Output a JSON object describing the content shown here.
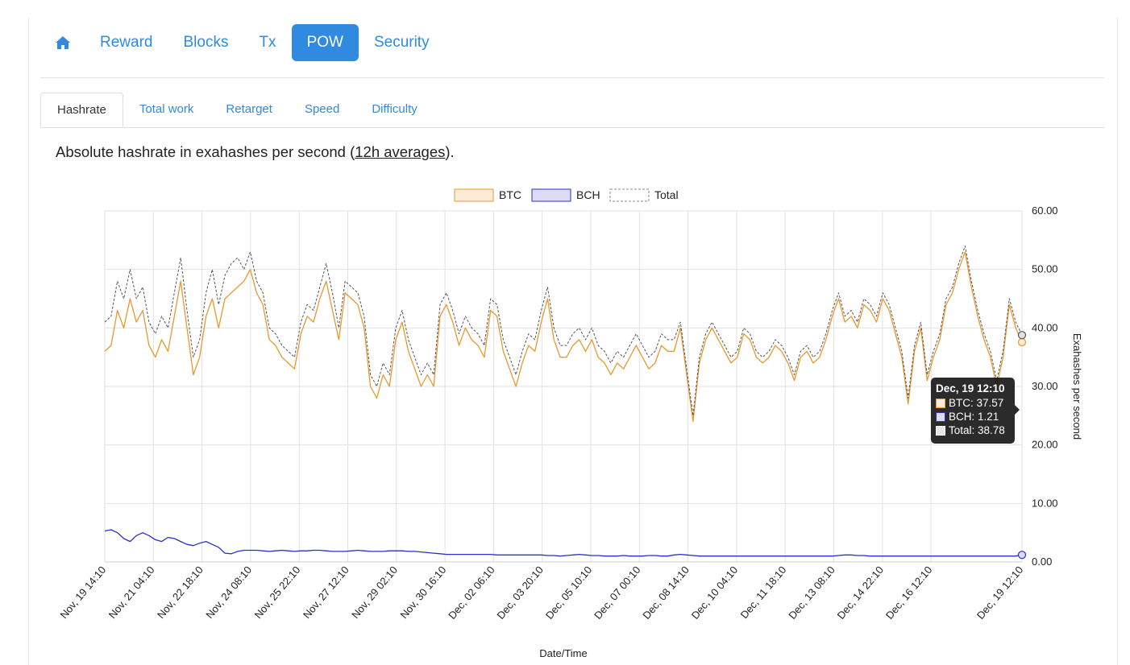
{
  "nav": {
    "home_icon": "home-icon",
    "items": [
      {
        "label": "Reward",
        "active": false
      },
      {
        "label": "Blocks",
        "active": false
      },
      {
        "label": "Tx",
        "active": false
      },
      {
        "label": "POW",
        "active": true
      },
      {
        "label": "Security",
        "active": false
      }
    ]
  },
  "subtabs": [
    {
      "label": "Hashrate",
      "active": true
    },
    {
      "label": "Total work",
      "active": false
    },
    {
      "label": "Retarget",
      "active": false
    },
    {
      "label": "Speed",
      "active": false
    },
    {
      "label": "Difficulty",
      "active": false
    }
  ],
  "description": {
    "before": "Absolute hashrate in exahashes per second (",
    "link": "12h averages",
    "after": ")."
  },
  "colors": {
    "accent": "#2f8ae0",
    "btc": "#e8982f",
    "btc_fill": "#fdebd8",
    "bch": "#2a2fc8",
    "bch_fill": "#dcdcf6",
    "total": "#555555"
  },
  "tooltip": {
    "title": "Dec, 19 12:10",
    "btc": "BTC: 37.57",
    "bch": "BCH: 1.21",
    "total": "Total: 38.78"
  },
  "chart_data": {
    "type": "line",
    "title": "",
    "xlabel": "Date/Time",
    "ylabel": "Exahashes per second",
    "ylim": [
      0,
      60
    ],
    "y_axis_side": "right",
    "yticks": [
      "0.00",
      "10.00",
      "20.00",
      "30.00",
      "40.00",
      "50.00",
      "60.00"
    ],
    "x_tick_labels": [
      "Nov, 19 14:10",
      "Nov, 21 04:10",
      "Nov, 22 18:10",
      "Nov, 24 08:10",
      "Nov, 25 22:10",
      "Nov, 27 12:10",
      "Nov, 29 02:10",
      "Nov, 30 16:10",
      "Dec, 02 06:10",
      "Dec, 03 20:10",
      "Dec, 05 10:10",
      "Dec, 07 00:10",
      "Dec, 08 14:10",
      "Dec, 10 04:10",
      "Dec, 11 18:10",
      "Dec, 13 08:10",
      "Dec, 14 22:10",
      "Dec, 16 12:10",
      "Dec, 19 12:10"
    ],
    "grid": true,
    "legend_position": "top-center",
    "series": [
      {
        "name": "BTC",
        "values": [
          36,
          37,
          43,
          40,
          45,
          41,
          43,
          37,
          35,
          38,
          36,
          42,
          48,
          40,
          32,
          35,
          42,
          45,
          40,
          45,
          46,
          47,
          48,
          50,
          46,
          44,
          38,
          37,
          35,
          34,
          33,
          39,
          42,
          41,
          45,
          48,
          43,
          38,
          46,
          45,
          44,
          40,
          30,
          28,
          32,
          30,
          38,
          41,
          36,
          33,
          30,
          32,
          30,
          42,
          44,
          41,
          37,
          40,
          38,
          37,
          35,
          43,
          42,
          36,
          33,
          30,
          34,
          37,
          36,
          41,
          45,
          38,
          35,
          35,
          37,
          38,
          36,
          38,
          35,
          34,
          32,
          34,
          33,
          35,
          37,
          35,
          33,
          34,
          37,
          36,
          36,
          40,
          32,
          24,
          34,
          38,
          40,
          38,
          36,
          34,
          35,
          39,
          38,
          35,
          34,
          35,
          37,
          36,
          34,
          31,
          35,
          36,
          34,
          35,
          38,
          42,
          45,
          41,
          42,
          40,
          44,
          43,
          41,
          45,
          43,
          39,
          35,
          27,
          36,
          40,
          31,
          35,
          38,
          44,
          46,
          50,
          53,
          47,
          42,
          38,
          35,
          30,
          35,
          44,
          40,
          37.57
        ]
      },
      {
        "name": "BCH",
        "values": [
          5.3,
          5.5,
          5.0,
          4.0,
          3.5,
          4.5,
          5.0,
          4.5,
          3.8,
          3.5,
          4.2,
          4.0,
          3.5,
          3.0,
          2.8,
          3.2,
          3.5,
          3.0,
          2.5,
          1.5,
          1.4,
          1.8,
          2.0,
          2.0,
          2.0,
          1.9,
          1.8,
          1.9,
          2.0,
          1.9,
          1.8,
          1.9,
          1.9,
          2.0,
          2.0,
          1.9,
          1.8,
          1.8,
          1.8,
          1.9,
          2.0,
          1.9,
          1.8,
          1.8,
          1.8,
          1.9,
          1.9,
          1.9,
          1.8,
          1.8,
          1.7,
          1.6,
          1.5,
          1.4,
          1.3,
          1.3,
          1.3,
          1.3,
          1.3,
          1.3,
          1.3,
          1.3,
          1.2,
          1.2,
          1.2,
          1.2,
          1.2,
          1.2,
          1.2,
          1.2,
          1.1,
          1.1,
          1.0,
          1.1,
          1.2,
          1.3,
          1.2,
          1.1,
          1.1,
          1.0,
          1.0,
          1.0,
          1.1,
          1.0,
          1.0,
          1.0,
          1.1,
          1.1,
          1.0,
          1.0,
          1.2,
          1.3,
          1.2,
          1.1,
          1.0,
          1.0,
          1.0,
          1.0,
          1.0,
          1.0,
          1.0,
          1.0,
          1.0,
          1.0,
          1.0,
          1.0,
          1.0,
          1.0,
          1.0,
          1.0,
          1.0,
          1.0,
          1.0,
          1.0,
          1.0,
          1.0,
          1.1,
          1.2,
          1.2,
          1.1,
          1.1,
          1.0,
          1.0,
          1.0,
          1.0,
          1.0,
          1.0,
          1.0,
          1.0,
          1.0,
          1.0,
          1.0,
          1.0,
          1.0,
          1.0,
          1.0,
          1.0,
          1.0,
          1.0,
          1.0,
          1.0,
          1.0,
          1.0,
          1.0,
          1.0,
          1.21
        ]
      },
      {
        "name": "Total",
        "values": [
          41,
          42,
          48,
          45,
          50,
          45,
          47,
          41,
          39,
          42,
          40,
          46,
          52,
          43,
          35,
          38,
          46,
          50,
          44,
          49,
          51,
          52,
          50,
          53,
          48,
          46,
          40,
          39,
          37,
          36,
          35,
          41,
          44,
          43,
          47,
          51,
          46,
          40,
          48,
          47,
          46,
          42,
          32,
          30,
          34,
          32,
          40,
          43,
          38,
          35,
          32,
          34,
          32,
          44,
          46,
          43,
          39,
          42,
          40,
          39,
          37,
          45,
          44,
          38,
          35,
          32,
          36,
          39,
          38,
          43,
          47,
          40,
          37,
          37,
          39,
          40,
          38,
          40,
          37,
          36,
          34,
          36,
          35,
          37,
          39,
          37,
          35,
          36,
          39,
          38,
          38,
          41,
          33,
          25,
          35,
          39,
          41,
          39,
          37,
          35,
          36,
          40,
          39,
          36,
          35,
          36,
          38,
          37,
          35,
          32,
          36,
          37,
          35,
          36,
          39,
          43,
          46,
          42,
          43,
          41,
          45,
          44,
          42,
          46,
          44,
          40,
          36,
          28,
          37,
          41,
          32,
          36,
          39,
          45,
          47,
          51,
          54,
          48,
          43,
          39,
          36,
          31,
          36,
          45,
          41,
          38.78
        ]
      }
    ]
  }
}
